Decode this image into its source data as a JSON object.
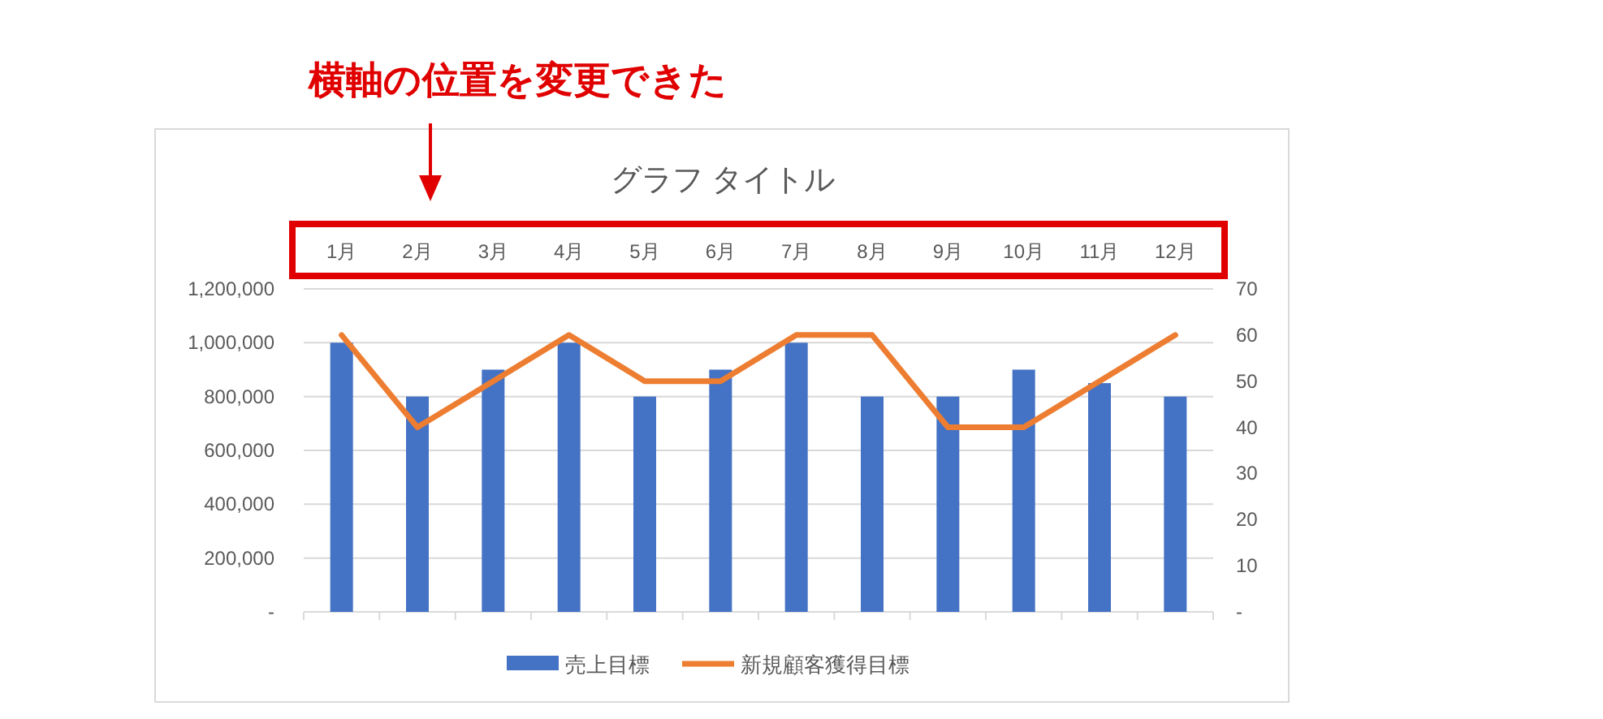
{
  "chart_data": {
    "type": "bar",
    "title": "グラフ タイトル",
    "categories": [
      "1月",
      "2月",
      "3月",
      "4月",
      "5月",
      "6月",
      "7月",
      "8月",
      "9月",
      "10月",
      "11月",
      "12月"
    ],
    "series": [
      {
        "name": "売上目標",
        "color": "#4472c4",
        "values": [
          1000000,
          800000,
          900000,
          1000000,
          800000,
          900000,
          1000000,
          800000,
          800000,
          900000,
          850000,
          800000
        ]
      },
      {
        "name": "新規顧客獲得目標",
        "type": "line",
        "axis": "y2",
        "color": "#ed7d31",
        "values": [
          60,
          40,
          50,
          60,
          50,
          50,
          60,
          60,
          40,
          40,
          50,
          60
        ]
      }
    ],
    "ylim": [
      0,
      1200000
    ],
    "yticks": [
      {
        "value": 0,
        "label": "-"
      },
      {
        "value": 200000,
        "label": "200,000"
      },
      {
        "value": 400000,
        "label": "400,000"
      },
      {
        "value": 600000,
        "label": "600,000"
      },
      {
        "value": 800000,
        "label": "800,000"
      },
      {
        "value": 1000000,
        "label": "1,000,000"
      },
      {
        "value": 1200000,
        "label": "1,200,000"
      }
    ],
    "y2lim": [
      0,
      70
    ],
    "y2ticks": [
      {
        "value": 0,
        "label": "-"
      },
      10,
      20,
      30,
      40,
      50,
      60,
      70
    ],
    "grid": "y",
    "legend": "bottom",
    "annotations": [
      "横軸の位置を変更できた"
    ]
  }
}
